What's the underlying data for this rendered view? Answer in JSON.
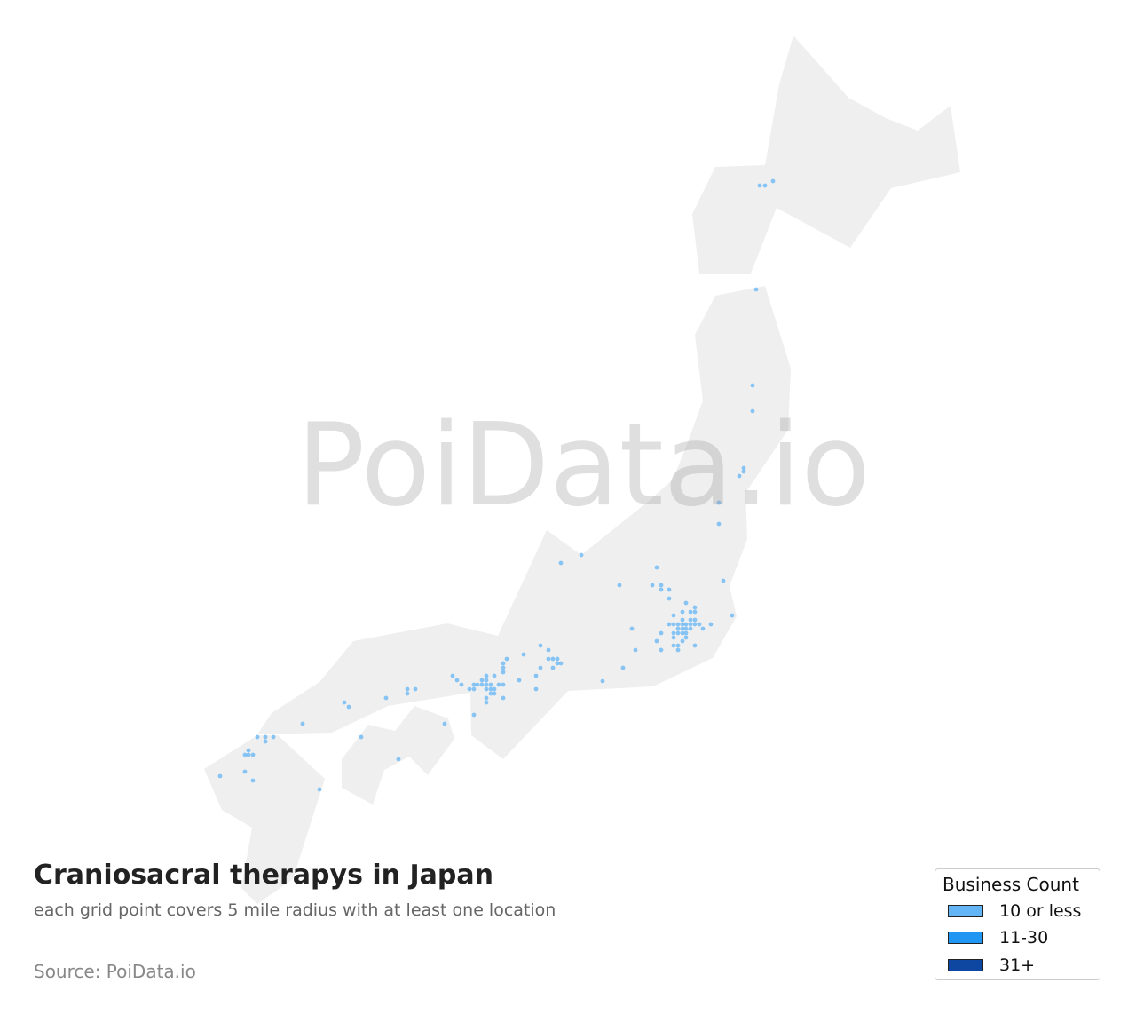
{
  "map": {
    "country": "Japan",
    "land_color": "#efefef",
    "point_color": "#64b5f6",
    "watermark": "PoiData.io"
  },
  "header": {
    "title": "Craniosacral therapys in Japan",
    "subtitle": "each grid point covers 5 mile radius with at least one location"
  },
  "footer": {
    "source": "Source: PoiData.io"
  },
  "legend": {
    "title": "Business Count",
    "items": [
      {
        "label": "10 or less",
        "color": "#64b5f6"
      },
      {
        "label": "11-30",
        "color": "#2196f3"
      },
      {
        "label": "31+",
        "color": "#0d47a1"
      }
    ]
  }
}
